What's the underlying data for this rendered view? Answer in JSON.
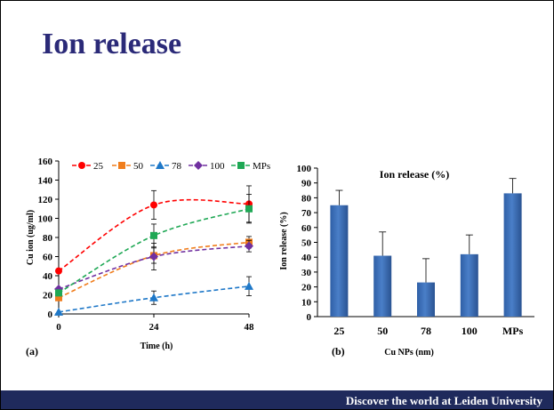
{
  "slide": {
    "title": "Ion release",
    "footer": "Discover the world at Leiden University"
  },
  "colors": {
    "title": "#2b2a78",
    "footer_bg": "#1f2a5c",
    "bar": "#4a7fc8",
    "s25": "#ff0000",
    "s50": "#f07d1c",
    "s78": "#1f78c8",
    "s100": "#7030a0",
    "sMPs": "#1fa855"
  },
  "chart_data": [
    {
      "type": "line",
      "panel_label": "(a)",
      "xlabel": "Time (h)",
      "ylabel": "Cu  ion (ug/ml)",
      "x": [
        0,
        24,
        48
      ],
      "xticks": [
        "0",
        "24",
        "48"
      ],
      "ylim": [
        0,
        160
      ],
      "yticks": [
        "0",
        "20",
        "40",
        "60",
        "80",
        "100",
        "120",
        "140",
        "160"
      ],
      "legend_position": "top",
      "series": [
        {
          "name": "25",
          "values": [
            45,
            114,
            115
          ],
          "errors": [
            0,
            15,
            19
          ],
          "marker": "circle",
          "color": "#ff0000"
        },
        {
          "name": "50",
          "values": [
            17,
            61,
            75
          ],
          "errors": [
            0,
            8,
            6
          ],
          "marker": "square",
          "color": "#f07d1c"
        },
        {
          "name": "78",
          "values": [
            2,
            17,
            29
          ],
          "errors": [
            0,
            7,
            10
          ],
          "marker": "triangle",
          "color": "#1f78c8"
        },
        {
          "name": "100",
          "values": [
            26,
            60,
            71
          ],
          "errors": [
            0,
            14,
            6
          ],
          "marker": "diamond",
          "color": "#7030a0"
        },
        {
          "name": "MPs",
          "values": [
            22,
            82,
            110
          ],
          "errors": [
            0,
            12,
            15
          ],
          "marker": "square",
          "color": "#1fa855"
        }
      ]
    },
    {
      "type": "bar",
      "panel_label": "(b)",
      "title": "Ion release (%)",
      "xlabel": "Cu NPs (nm)",
      "ylabel": "Ion release (%)",
      "categories": [
        "25",
        "50",
        "78",
        "100",
        "MPs"
      ],
      "values": [
        75,
        41,
        23,
        42,
        83
      ],
      "errors": [
        10,
        16,
        16,
        13,
        10
      ],
      "ylim": [
        0,
        100
      ],
      "yticks": [
        "0",
        "10",
        "20",
        "30",
        "40",
        "50",
        "60",
        "70",
        "80",
        "90",
        "100"
      ]
    }
  ]
}
